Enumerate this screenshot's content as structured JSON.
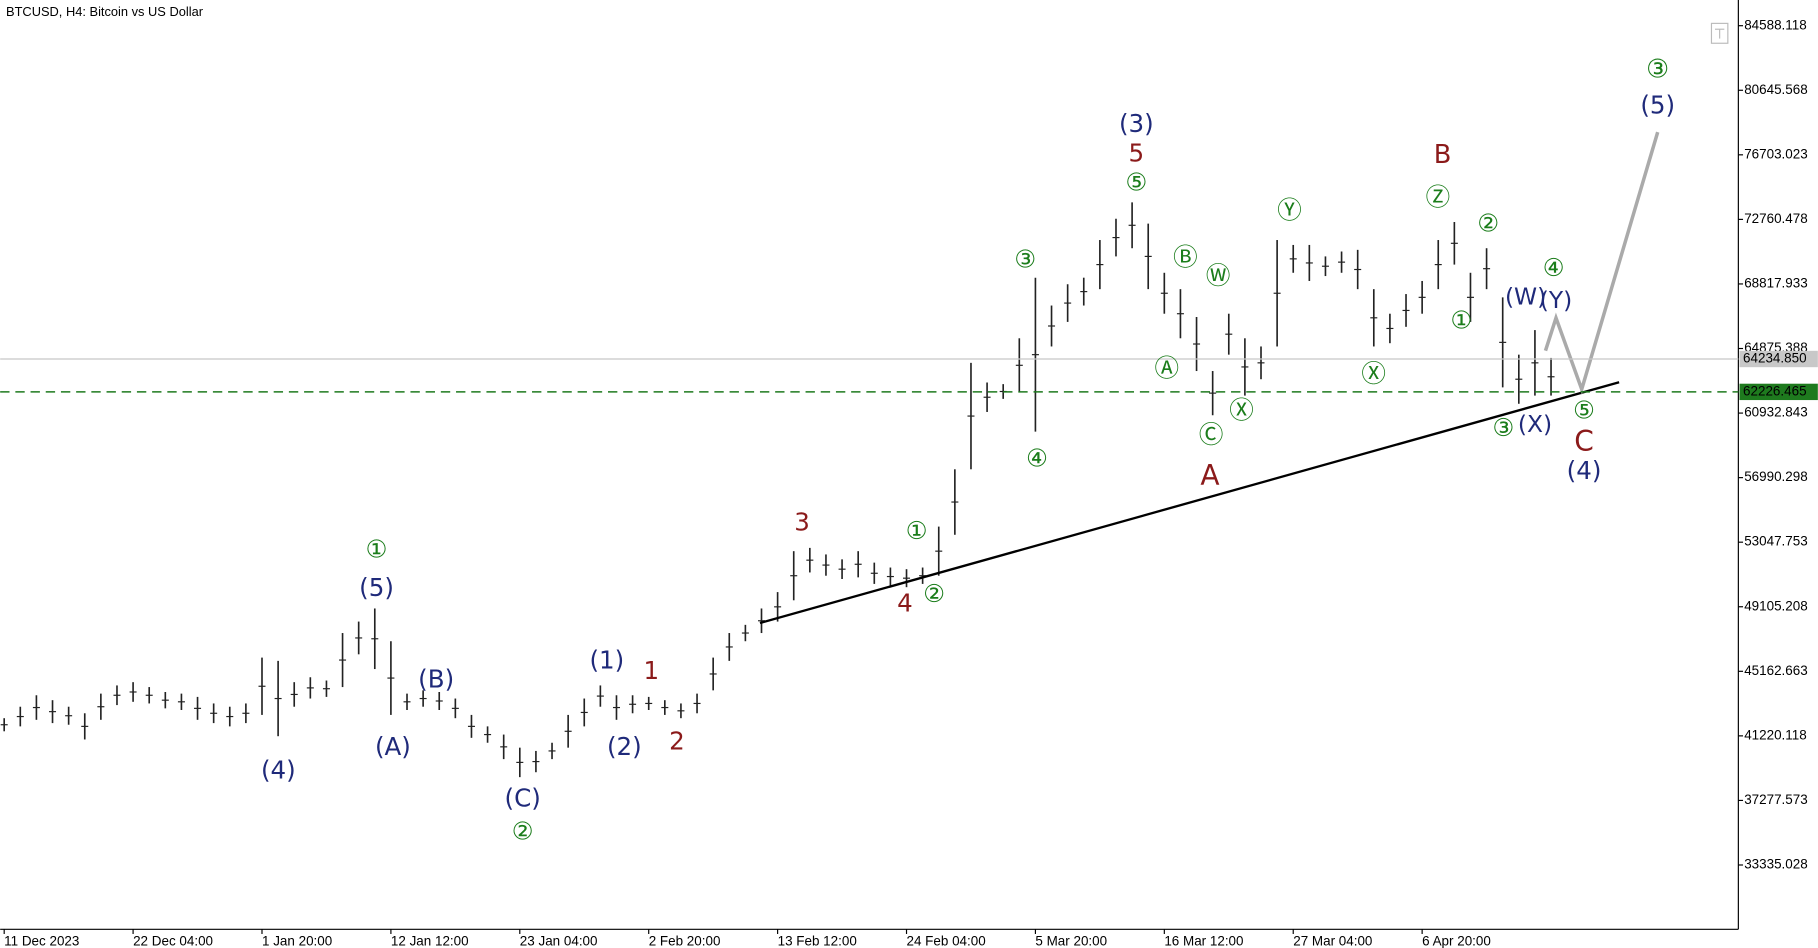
{
  "chart_data": {
    "type": "ohlc",
    "title": "BTCUSD, H4:  Bitcoin vs US Dollar",
    "color": "#222222",
    "x": [
      0,
      8,
      16,
      24,
      32,
      40,
      48,
      56,
      64,
      72,
      80,
      88,
      96,
      104,
      112,
      120,
      128,
      136,
      144,
      152,
      160,
      168,
      176,
      184,
      192,
      200,
      208,
      216,
      224,
      232,
      240,
      248,
      256,
      264,
      272,
      280,
      288,
      296,
      304,
      312,
      320,
      328,
      336,
      344,
      352,
      360,
      368,
      376,
      384,
      392,
      400,
      408,
      416,
      424,
      432,
      440,
      448,
      456,
      464,
      472,
      480,
      488,
      496,
      504,
      512,
      520,
      528,
      536,
      544,
      552,
      560,
      568,
      576,
      584,
      592,
      600,
      608,
      616,
      624,
      632,
      640,
      648,
      656,
      664,
      672,
      680,
      688,
      696,
      704,
      712,
      720,
      728,
      736,
      744,
      752,
      760,
      768
    ],
    "highs": [
      42300,
      43000,
      43700,
      43400,
      43000,
      42600,
      43800,
      44300,
      44500,
      44200,
      43900,
      43800,
      43600,
      43200,
      43000,
      43200,
      46000,
      45800,
      44500,
      44800,
      44600,
      47500,
      48200,
      49000,
      47000,
      43800,
      44000,
      43900,
      43500,
      42500,
      41800,
      41300,
      40500,
      40300,
      40800,
      42500,
      43500,
      44300,
      43700,
      43700,
      43600,
      43400,
      43200,
      43800,
      46000,
      47500,
      48000,
      49000,
      50000,
      52500,
      52700,
      52300,
      52000,
      52500,
      51800,
      51500,
      51400,
      51500,
      54000,
      57500,
      64000,
      62800,
      62700,
      65500,
      69200,
      67500,
      68800,
      69200,
      71500,
      72800,
      73800,
      72500,
      69500,
      68500,
      66800,
      63500,
      67000,
      65500,
      65000,
      71500,
      71200,
      71200,
      70500,
      70800,
      70900,
      68500,
      67000,
      68200,
      69000,
      71500,
      72600,
      69500,
      71000,
      68000,
      64500,
      66000,
      64300
    ],
    "lows": [
      41500,
      41800,
      42200,
      42000,
      41900,
      41000,
      42200,
      43100,
      43300,
      43200,
      42900,
      42800,
      42200,
      42000,
      41800,
      42000,
      42500,
      41200,
      43000,
      43500,
      43600,
      44200,
      46200,
      45300,
      42500,
      42800,
      43000,
      42800,
      42300,
      41100,
      40800,
      39800,
      38700,
      39000,
      39800,
      40500,
      41800,
      43000,
      42200,
      42600,
      42800,
      42500,
      42300,
      42600,
      44000,
      45800,
      47000,
      47500,
      48200,
      49500,
      51200,
      51000,
      50800,
      50900,
      50500,
      50400,
      50300,
      50500,
      51000,
      53500,
      57500,
      61000,
      61800,
      62200,
      59800,
      65000,
      66500,
      67500,
      68500,
      70500,
      71000,
      68500,
      67000,
      65500,
      63500,
      60800,
      64500,
      62000,
      63000,
      65000,
      69500,
      69000,
      69300,
      69500,
      68500,
      65000,
      65200,
      66200,
      67000,
      68500,
      70000,
      66500,
      68500,
      62500,
      61500,
      62000,
      62000
    ],
    "xlim": [
      -2,
      861
    ],
    "xticks": [
      {
        "value": 0,
        "label": "11 Dec 2023"
      },
      {
        "value": 64,
        "label": "22 Dec 04:00"
      },
      {
        "value": 128,
        "label": "1 Jan 20:00"
      },
      {
        "value": 192,
        "label": "12 Jan 12:00"
      },
      {
        "value": 256,
        "label": "23 Jan 04:00"
      },
      {
        "value": 320,
        "label": "2 Feb 20:00"
      },
      {
        "value": 384,
        "label": "13 Feb 12:00"
      },
      {
        "value": 448,
        "label": "24 Feb 04:00"
      },
      {
        "value": 512,
        "label": "5 Mar 20:00"
      },
      {
        "value": 576,
        "label": "16 Mar 12:00"
      },
      {
        "value": 640,
        "label": "27 Mar 04:00"
      },
      {
        "value": 704,
        "label": "6 Apr 20:00"
      }
    ],
    "ylim": [
      29408,
      86158
    ],
    "yticks": [
      84588.118,
      80645.568,
      76703.023,
      72760.478,
      68817.933,
      64875.388,
      60932.843,
      56990.298,
      53047.753,
      49105.208,
      45162.663,
      41220.118,
      37277.573,
      33335.028
    ],
    "price_lines": [
      {
        "value": {
          "value": 64234.85,
          "label": "64234.850"
        },
        "color": "#c8c8c8",
        "dashed": false
      },
      {
        "value": 62226.465,
        "color": "#1e7a1e",
        "dashed": true
      }
    ],
    "annotations": [
      {
        "text": "①",
        "color": "#1b7d1b"
      },
      {
        "text": "(5)",
        "color": "#1f2a7a"
      },
      {
        "text": "(4)",
        "color": "#1f2a7a"
      },
      {
        "text": "(A)",
        "color": "#1f2a7a"
      },
      {
        "text": "(B)",
        "color": "#1f2a7a"
      },
      {
        "text": "(C)",
        "color": "#1f2a7a"
      },
      {
        "text": "②",
        "color": "#1b7d1b"
      },
      {
        "text": "(1)",
        "color": "#1f2a7a"
      },
      {
        "text": "(2)",
        "color": "#1f2a7a"
      },
      {
        "text": "1",
        "color": "#8b1a1a"
      },
      {
        "text": "2",
        "color": "#8b1a1a"
      },
      {
        "text": "3",
        "color": "#8b1a1a"
      },
      {
        "text": "4",
        "color": "#8b1a1a"
      },
      {
        "text": "②",
        "color": "#1b7d1b"
      },
      {
        "text": "①",
        "color": "#1b7d1b"
      },
      {
        "text": "③",
        "color": "#1b7d1b"
      },
      {
        "text": "④",
        "color": "#1b7d1b"
      },
      {
        "text": "(3)",
        "color": "#1f2a7a"
      },
      {
        "text": "5",
        "color": "#8b1a1a"
      },
      {
        "text": "⑤",
        "color": "#1b7d1b"
      },
      {
        "text": "Ⓑ",
        "color": "#1b7d1b"
      },
      {
        "text": "Ⓦ",
        "color": "#1b7d1b"
      },
      {
        "text": "Ⓐ",
        "color": "#1b7d1b"
      },
      {
        "text": "Ⓒ",
        "color": "#1b7d1b"
      },
      {
        "text": "Ⓧ",
        "color": "#1b7d1b"
      },
      {
        "text": "Ⓨ",
        "color": "#1b7d1b"
      },
      {
        "text": "Ⓧ",
        "color": "#1b7d1b"
      },
      {
        "text": "B",
        "color": "#8b1a1a"
      },
      {
        "text": "Ⓩ",
        "color": "#1b7d1b"
      },
      {
        "text": "②",
        "color": "#1b7d1b"
      },
      {
        "text": "①",
        "color": "#1b7d1b"
      },
      {
        "text": "④",
        "color": "#1b7d1b"
      },
      {
        "text": "(W)",
        "color": "#1f2a7a"
      },
      {
        "text": "(Y)",
        "color": "#1f2a7a"
      },
      {
        "text": "③",
        "color": "#1b7d1b"
      },
      {
        "text": "(X)",
        "color": "#1f2a7a"
      },
      {
        "text": "⑤",
        "color": "#1b7d1b"
      },
      {
        "text": "C",
        "color": "#8b1a1a"
      },
      {
        "text": "(4)",
        "color": "#1f2a7a"
      },
      {
        "text": "A",
        "color": "#8b1a1a"
      },
      {
        "text": "③",
        "color": "#1b7d1b"
      },
      {
        "text": "(5)",
        "color": "#1f2a7a"
      }
    ]
  }
}
